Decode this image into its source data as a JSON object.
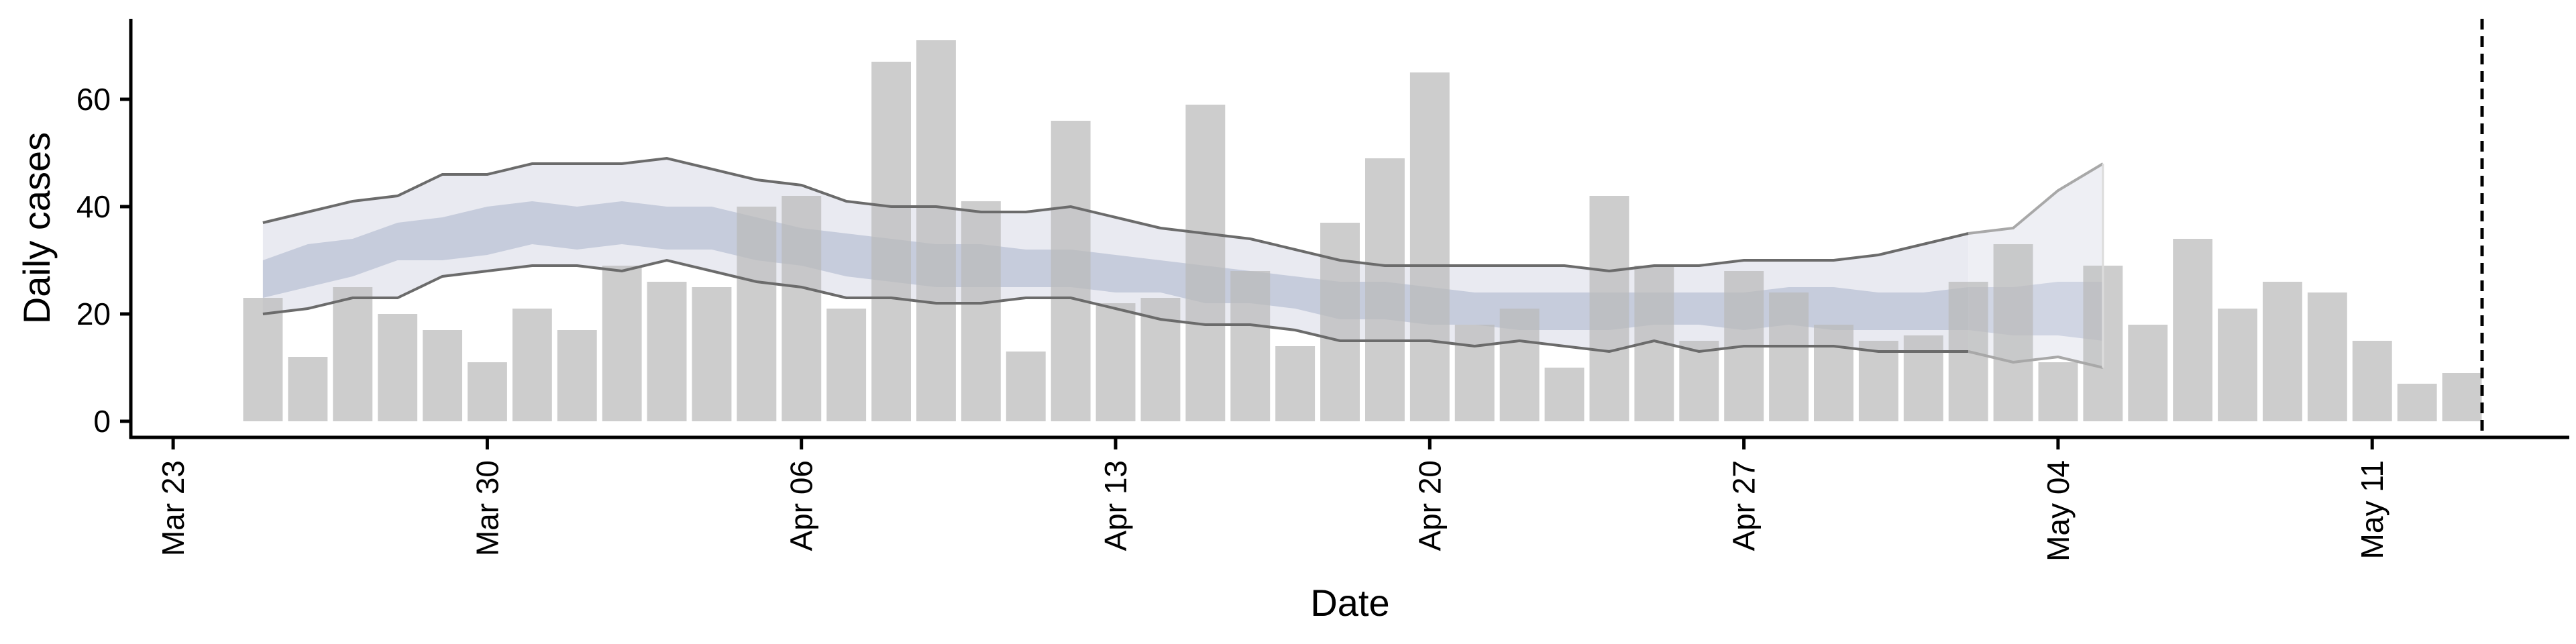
{
  "chart_data": {
    "type": "bar",
    "xlabel": "Date",
    "ylabel": "Daily cases",
    "x_ticks": [
      "Mar 23",
      "Mar 30",
      "Apr 06",
      "Apr 13",
      "Apr 20",
      "Apr 27",
      "May 04",
      "May 11"
    ],
    "y_ticks": [
      0,
      20,
      40,
      60
    ],
    "ylim": [
      -3,
      75
    ],
    "xlim": [
      "2020-03-22",
      "2020-05-18"
    ],
    "grid": false,
    "dates": [
      "2020-03-24",
      "2020-03-25",
      "2020-03-26",
      "2020-03-27",
      "2020-03-28",
      "2020-03-29",
      "2020-03-30",
      "2020-03-31",
      "2020-04-01",
      "2020-04-02",
      "2020-04-03",
      "2020-04-04",
      "2020-04-05",
      "2020-04-06",
      "2020-04-07",
      "2020-04-08",
      "2020-04-09",
      "2020-04-10",
      "2020-04-11",
      "2020-04-12",
      "2020-04-13",
      "2020-04-14",
      "2020-04-15",
      "2020-04-16",
      "2020-04-17",
      "2020-04-18",
      "2020-04-19",
      "2020-04-20",
      "2020-04-21",
      "2020-04-22",
      "2020-04-23",
      "2020-04-24",
      "2020-04-25",
      "2020-04-26",
      "2020-04-27",
      "2020-04-28",
      "2020-04-29",
      "2020-04-30",
      "2020-05-01",
      "2020-05-02",
      "2020-05-03",
      "2020-05-04",
      "2020-05-05",
      "2020-05-06",
      "2020-05-07",
      "2020-05-08",
      "2020-05-09",
      "2020-05-10",
      "2020-05-11",
      "2020-05-12"
    ],
    "daily_cases": [
      23,
      12,
      25,
      20,
      17,
      11,
      21,
      17,
      29,
      26,
      25,
      40,
      42,
      21,
      67,
      71,
      41,
      13,
      56,
      22,
      23,
      59,
      28,
      14,
      37,
      49,
      65,
      18,
      21,
      10,
      42,
      29,
      15,
      28,
      24,
      18,
      15,
      16,
      26,
      33,
      11,
      29,
      18,
      34,
      21,
      26,
      24,
      15,
      7,
      9
    ],
    "band_dates": [
      "2020-03-24",
      "2020-03-25",
      "2020-03-26",
      "2020-03-27",
      "2020-03-28",
      "2020-03-29",
      "2020-03-30",
      "2020-03-31",
      "2020-04-01",
      "2020-04-02",
      "2020-04-03",
      "2020-04-04",
      "2020-04-05",
      "2020-04-06",
      "2020-04-07",
      "2020-04-08",
      "2020-04-09",
      "2020-04-10",
      "2020-04-11",
      "2020-04-12",
      "2020-04-13",
      "2020-04-14",
      "2020-04-15",
      "2020-04-16",
      "2020-04-17",
      "2020-04-18",
      "2020-04-19",
      "2020-04-20",
      "2020-04-21",
      "2020-04-22",
      "2020-04-23",
      "2020-04-24",
      "2020-04-25",
      "2020-04-26",
      "2020-04-27",
      "2020-04-28",
      "2020-04-29",
      "2020-04-30",
      "2020-05-01",
      "2020-05-02",
      "2020-05-03",
      "2020-05-04"
    ],
    "outer_upper": [
      37,
      39,
      41,
      42,
      46,
      46,
      48,
      48,
      48,
      49,
      47,
      45,
      44,
      41,
      40,
      40,
      39,
      39,
      40,
      38,
      36,
      35,
      34,
      32,
      30,
      29,
      29,
      29,
      29,
      29,
      28,
      29,
      29,
      30,
      30,
      30,
      31,
      33,
      35,
      36,
      43,
      48
    ],
    "outer_lower": [
      20,
      21,
      23,
      23,
      27,
      28,
      29,
      29,
      28,
      30,
      28,
      26,
      25,
      23,
      23,
      22,
      22,
      23,
      23,
      21,
      19,
      18,
      18,
      17,
      15,
      15,
      15,
      14,
      15,
      14,
      13,
      15,
      13,
      14,
      14,
      14,
      13,
      13,
      13,
      11,
      12,
      10
    ],
    "inner_upper": [
      30,
      33,
      34,
      37,
      38,
      40,
      41,
      40,
      41,
      40,
      40,
      38,
      36,
      35,
      34,
      33,
      33,
      32,
      32,
      31,
      30,
      29,
      28,
      27,
      26,
      26,
      25,
      24,
      24,
      24,
      24,
      24,
      24,
      24,
      25,
      25,
      24,
      24,
      25,
      25,
      26,
      26
    ],
    "inner_lower": [
      23,
      25,
      27,
      30,
      30,
      31,
      33,
      32,
      33,
      32,
      32,
      30,
      29,
      27,
      26,
      25,
      25,
      25,
      25,
      24,
      24,
      22,
      22,
      21,
      19,
      19,
      18,
      18,
      17,
      17,
      17,
      18,
      18,
      17,
      18,
      17,
      17,
      17,
      17,
      16,
      16,
      15
    ],
    "projection_start": "2020-05-01",
    "vline_date": "2020-05-12",
    "colors": {
      "bars": "#bababa",
      "outer_band": "#e9eaf1",
      "inner_band": "#c6ccdc",
      "band_outline": "#6b6b6b",
      "projection_band_outer": "#eeeff4",
      "projection_band_inner": "#d0d5e3",
      "projection_outline": "#a8a8a8",
      "vline": "#000000"
    }
  }
}
